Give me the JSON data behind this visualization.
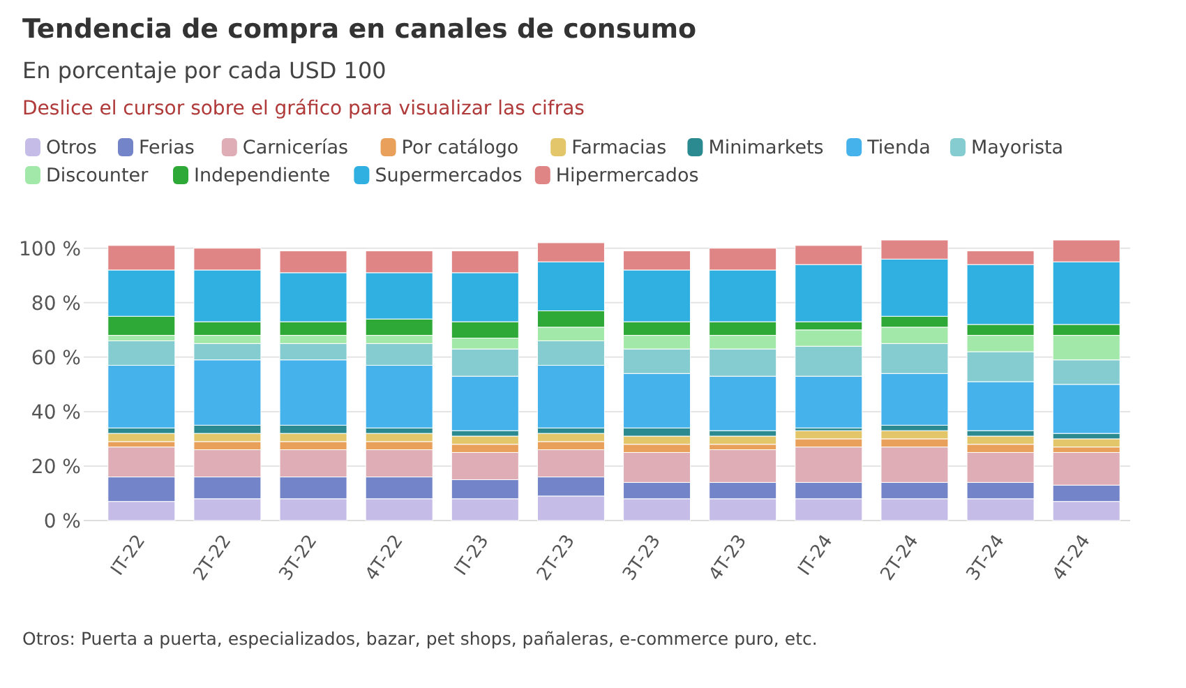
{
  "chart_data": {
    "type": "bar",
    "stacked": true,
    "title": "Tendencia de compra en canales de consumo",
    "subtitle": "En porcentaje por cada USD 100",
    "annotations": [
      "Deslice el cursor sobre el gráfico para visualizar las cifras",
      "Otros: Puerta a puerta, especializados, bazar, pet shops, pañaleras, e-commerce puro, etc."
    ],
    "categories": [
      "IT-22",
      "2T-22",
      "3T-22",
      "4T-22",
      "IT-23",
      "2T-23",
      "3T-23",
      "4T-23",
      "IT-24",
      "2T-24",
      "3T-24",
      "4T-24"
    ],
    "series": [
      {
        "name": "Otros",
        "color": "#c5bde8",
        "values": [
          7,
          8,
          8,
          8,
          8,
          9,
          8,
          8,
          8,
          8,
          8,
          7
        ]
      },
      {
        "name": "Ferias",
        "color": "#7484c9",
        "values": [
          9,
          8,
          8,
          8,
          7,
          7,
          6,
          6,
          6,
          6,
          6,
          6
        ]
      },
      {
        "name": "Carnicerías",
        "color": "#dfadb5",
        "values": [
          11,
          10,
          10,
          10,
          10,
          10,
          11,
          12,
          13,
          13,
          11,
          12
        ]
      },
      {
        "name": "Por catálogo",
        "color": "#e8a05a",
        "values": [
          2,
          3,
          3,
          3,
          3,
          3,
          3,
          2,
          3,
          3,
          3,
          2
        ]
      },
      {
        "name": "Farmacias",
        "color": "#e4c66a",
        "values": [
          3,
          3,
          3,
          3,
          3,
          3,
          3,
          3,
          3,
          3,
          3,
          3
        ]
      },
      {
        "name": "Minimarkets",
        "color": "#2a8a8f",
        "values": [
          2,
          3,
          3,
          2,
          2,
          2,
          3,
          2,
          1,
          2,
          2,
          2
        ]
      },
      {
        "name": "Tienda",
        "color": "#45b2eb",
        "values": [
          23,
          24,
          24,
          23,
          20,
          23,
          20,
          20,
          19,
          19,
          18,
          18
        ]
      },
      {
        "name": "Mayorista",
        "color": "#85ccd0",
        "values": [
          9,
          6,
          6,
          8,
          10,
          9,
          9,
          10,
          11,
          11,
          11,
          9
        ]
      },
      {
        "name": "Discounter",
        "color": "#a2e8a8",
        "values": [
          2,
          3,
          3,
          3,
          4,
          5,
          5,
          5,
          6,
          6,
          6,
          9
        ]
      },
      {
        "name": "Independiente",
        "color": "#2ea836",
        "values": [
          7,
          5,
          5,
          6,
          6,
          6,
          5,
          5,
          3,
          4,
          4,
          4
        ]
      },
      {
        "name": "Supermercados",
        "color": "#2fb0e0",
        "values": [
          17,
          19,
          18,
          17,
          18,
          18,
          19,
          19,
          21,
          21,
          22,
          23
        ]
      },
      {
        "name": "Hipermercados",
        "color": "#e08585",
        "values": [
          9,
          8,
          8,
          8,
          8,
          7,
          7,
          8,
          7,
          7,
          5,
          8
        ]
      }
    ],
    "ylim": [
      0,
      103
    ],
    "yticks": [
      {
        "value": 0,
        "label": "0 %"
      },
      {
        "value": 20,
        "label": "20 %"
      },
      {
        "value": 40,
        "label": "40 %"
      },
      {
        "value": 60,
        "label": "60 %"
      },
      {
        "value": 80,
        "label": "80 %"
      },
      {
        "value": 100,
        "label": "100 %"
      }
    ],
    "grid": "y",
    "legend": "top"
  }
}
